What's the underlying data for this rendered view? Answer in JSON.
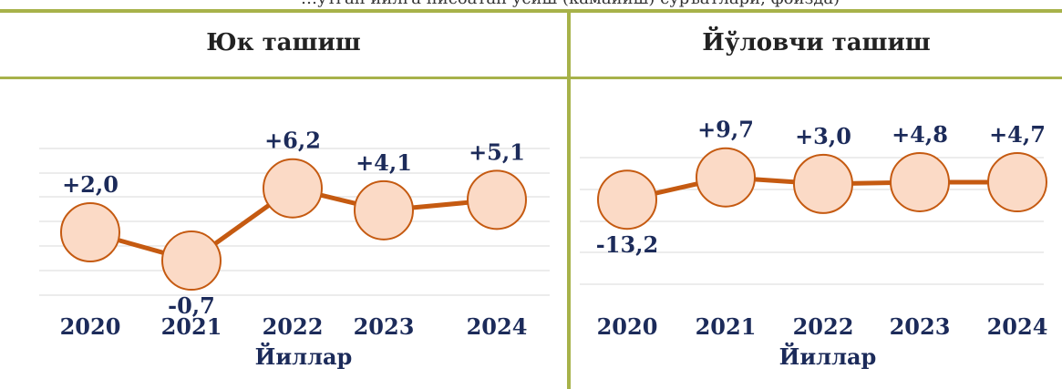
{
  "header_strip_text": "…ўтган йилга нисбатан ўсиш (камайиш) суръатлари, фоизда)",
  "colors": {
    "accent_rule": "#a7b24a",
    "line": "#c55a11",
    "marker_fill": "#fbdac6",
    "marker_stroke": "#c55a11",
    "label_text": "#1c2b5a",
    "grid": "#d9d9d9"
  },
  "chart_data": [
    {
      "type": "line",
      "title": "Юк ташиш",
      "xlabel": "Йиллар",
      "ylabel": "",
      "categories": [
        "2020",
        "2021",
        "2022",
        "2023",
        "2024"
      ],
      "values": [
        2.0,
        -0.7,
        6.2,
        4.1,
        5.1
      ],
      "data_labels": [
        "+2,0",
        "-0,7",
        "+6,2",
        "+4,1",
        "+5,1"
      ],
      "ylim": [
        -4,
        10
      ],
      "grid": true,
      "legend": "none"
    },
    {
      "type": "line",
      "title": "Йўловчи ташиш",
      "xlabel": "Йиллар",
      "ylabel": "",
      "categories": [
        "2020",
        "2021",
        "2022",
        "2023",
        "2024"
      ],
      "values": [
        -13.2,
        9.7,
        3.0,
        4.8,
        4.7
      ],
      "data_labels": [
        "-13,2",
        "+9,7",
        "+3,0",
        "+4,8",
        "+4,7"
      ],
      "ylim": [
        -100,
        30
      ],
      "grid": true,
      "legend": "none"
    }
  ]
}
